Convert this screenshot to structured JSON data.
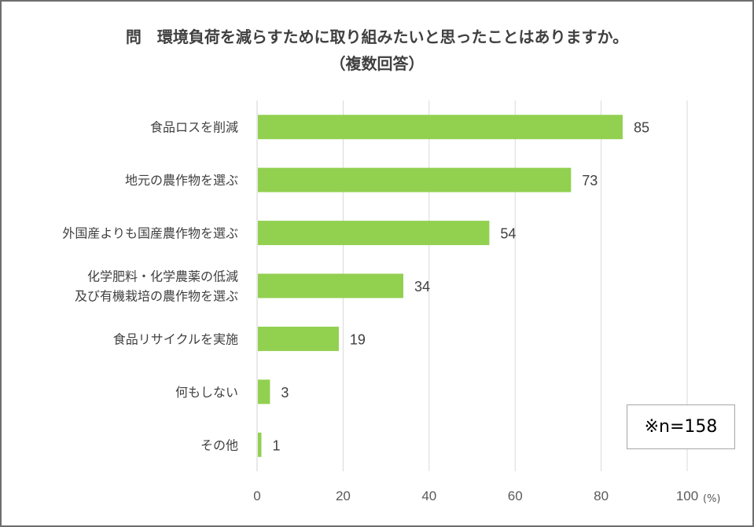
{
  "chart_data": {
    "type": "bar",
    "orientation": "horizontal",
    "title_lines": [
      "問　環境負荷を減らすために取り組みたいと思ったことはありますか。",
      "（複数回答）"
    ],
    "categories": [
      [
        "食品ロスを削減"
      ],
      [
        "地元の農作物を選ぶ"
      ],
      [
        "外国産よりも国産農作物を選ぶ"
      ],
      [
        "化学肥料・化学農薬の低減",
        "及び有機栽培の農作物を選ぶ"
      ],
      [
        "食品リサイクルを実施"
      ],
      [
        "何もしない"
      ],
      [
        "その他"
      ]
    ],
    "values": [
      85,
      73,
      54,
      34,
      19,
      3,
      1
    ],
    "xlim": [
      0,
      100
    ],
    "xticks": [
      "0",
      "20",
      "40",
      "60",
      "80",
      "100"
    ],
    "xticks_values": [
      0,
      20,
      40,
      60,
      80,
      100
    ],
    "unit_label": "(%)",
    "grid": true,
    "bar_color": "#92d050",
    "note": "※n=158"
  }
}
